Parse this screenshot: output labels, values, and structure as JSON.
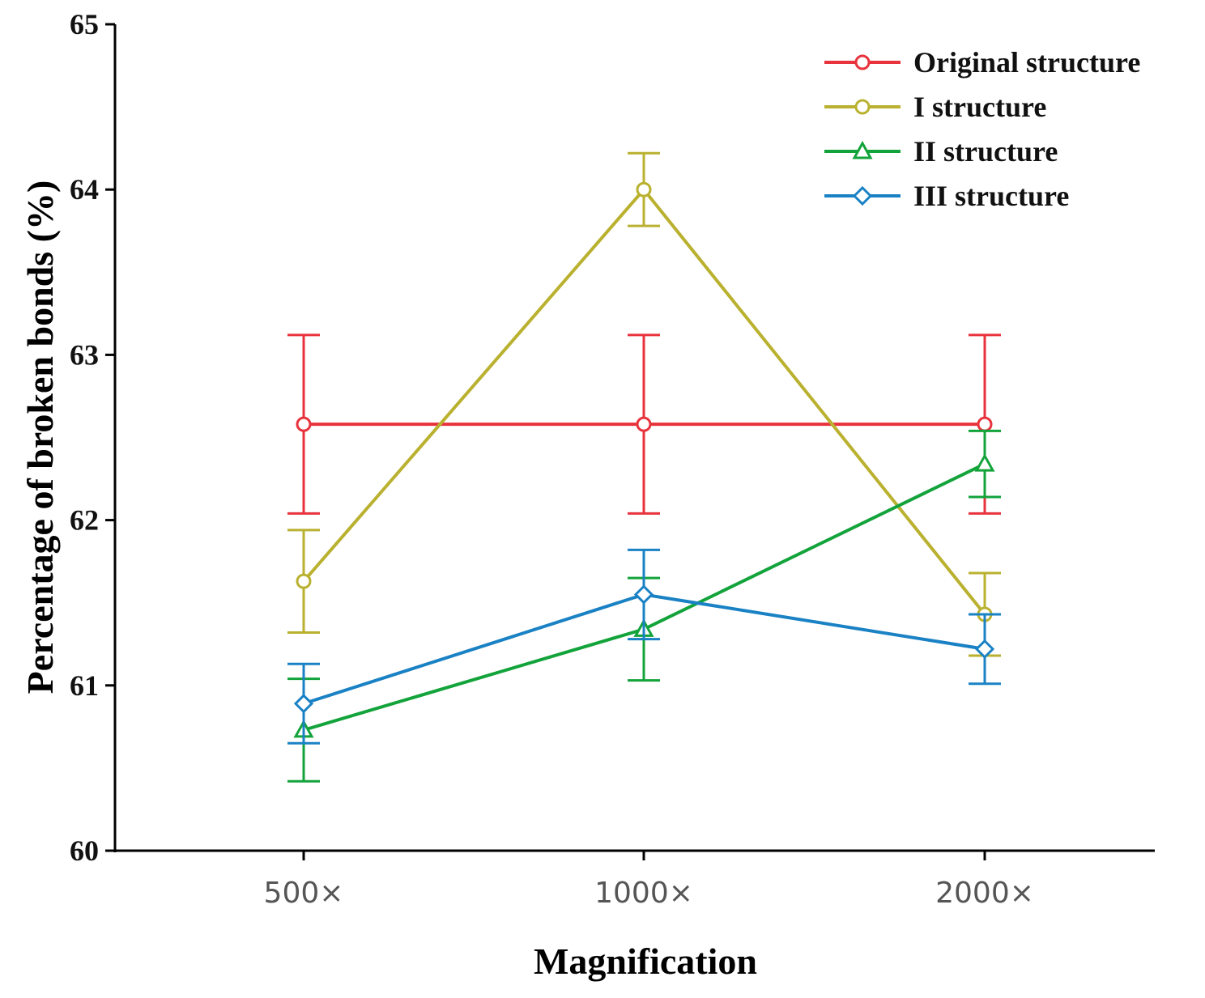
{
  "chart_data": {
    "type": "line",
    "title": "",
    "xlabel": "Magnification",
    "ylabel": "Percentage of broken bonds (%)",
    "categories": [
      "500×",
      "1000×",
      "2000×"
    ],
    "ylim": [
      60,
      65
    ],
    "yticks": [
      "60",
      "61",
      "62",
      "63",
      "64",
      "65"
    ],
    "legend_position": "top-right",
    "series": [
      {
        "name": "Original structure",
        "color": "#e8323c",
        "marker": "circle",
        "values": [
          62.58,
          62.58,
          62.58
        ],
        "errors": [
          0.54,
          0.54,
          0.54
        ]
      },
      {
        "name": "I structure",
        "color": "#b9b12f",
        "marker": "circle",
        "values": [
          61.63,
          64.0,
          61.43
        ],
        "errors": [
          0.31,
          0.22,
          0.25
        ]
      },
      {
        "name": "II structure",
        "color": "#13a33b",
        "marker": "triangle",
        "values": [
          60.73,
          61.34,
          62.34
        ],
        "errors": [
          0.31,
          0.31,
          0.2
        ]
      },
      {
        "name": "III structure",
        "color": "#1a82c4",
        "marker": "diamond",
        "values": [
          60.89,
          61.55,
          61.22
        ],
        "errors": [
          0.24,
          0.27,
          0.21
        ]
      }
    ]
  }
}
